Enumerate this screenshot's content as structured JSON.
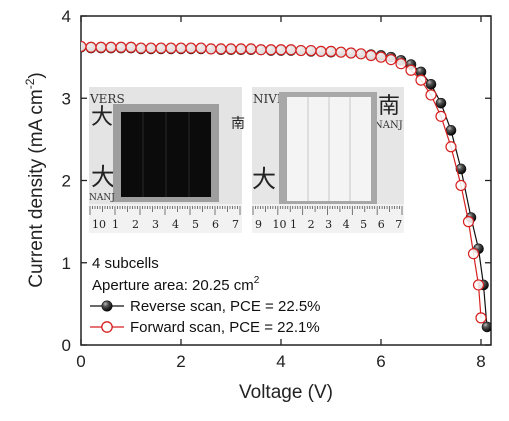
{
  "chart_data": {
    "type": "line",
    "xlabel": "Voltage (V)",
    "ylabel": "Current density (mA cm",
    "ylabel_sup": "-2",
    "ylabel_end": ")",
    "xlim": [
      0,
      8.2
    ],
    "ylim": [
      0,
      4
    ],
    "xticks": [
      0,
      2,
      4,
      6,
      8
    ],
    "yticks": [
      0,
      1,
      2,
      3,
      4
    ],
    "grid": false,
    "legend_position": "bottom-left",
    "annotations": {
      "line1": "4 subcells",
      "line2": "Aperture area: 20.25 cm",
      "line2_sup": "2"
    },
    "colors": {
      "reverse": "#111111",
      "forward": "#d62020"
    },
    "series": [
      {
        "name": "Reverse scan, PCE = 22.5%",
        "marker": "filled-sphere",
        "points": [
          [
            0,
            3.62
          ],
          [
            0.2,
            3.61
          ],
          [
            0.4,
            3.61
          ],
          [
            0.6,
            3.61
          ],
          [
            0.8,
            3.61
          ],
          [
            1.0,
            3.61
          ],
          [
            1.2,
            3.6
          ],
          [
            1.4,
            3.6
          ],
          [
            1.6,
            3.6
          ],
          [
            1.8,
            3.6
          ],
          [
            2.0,
            3.6
          ],
          [
            2.2,
            3.6
          ],
          [
            2.4,
            3.6
          ],
          [
            2.6,
            3.6
          ],
          [
            2.8,
            3.59
          ],
          [
            3.0,
            3.59
          ],
          [
            3.2,
            3.59
          ],
          [
            3.4,
            3.59
          ],
          [
            3.6,
            3.59
          ],
          [
            3.8,
            3.58
          ],
          [
            4.0,
            3.58
          ],
          [
            4.2,
            3.58
          ],
          [
            4.4,
            3.58
          ],
          [
            4.6,
            3.57
          ],
          [
            4.8,
            3.57
          ],
          [
            5.0,
            3.56
          ],
          [
            5.2,
            3.56
          ],
          [
            5.4,
            3.55
          ],
          [
            5.6,
            3.54
          ],
          [
            5.8,
            3.53
          ],
          [
            6.0,
            3.52
          ],
          [
            6.2,
            3.5
          ],
          [
            6.4,
            3.46
          ],
          [
            6.6,
            3.41
          ],
          [
            6.8,
            3.32
          ],
          [
            7.0,
            3.17
          ],
          [
            7.2,
            2.94
          ],
          [
            7.4,
            2.61
          ],
          [
            7.6,
            2.14
          ],
          [
            7.8,
            1.55
          ],
          [
            7.95,
            1.17
          ],
          [
            8.05,
            0.73
          ],
          [
            8.12,
            0.22
          ]
        ]
      },
      {
        "name": "Forward scan, PCE = 22.1%",
        "marker": "open-circle",
        "points": [
          [
            0,
            3.63
          ],
          [
            0.2,
            3.62
          ],
          [
            0.4,
            3.62
          ],
          [
            0.6,
            3.62
          ],
          [
            0.8,
            3.62
          ],
          [
            1.0,
            3.62
          ],
          [
            1.2,
            3.61
          ],
          [
            1.4,
            3.61
          ],
          [
            1.6,
            3.61
          ],
          [
            1.8,
            3.61
          ],
          [
            2.0,
            3.61
          ],
          [
            2.2,
            3.61
          ],
          [
            2.4,
            3.61
          ],
          [
            2.6,
            3.6
          ],
          [
            2.8,
            3.6
          ],
          [
            3.0,
            3.6
          ],
          [
            3.2,
            3.6
          ],
          [
            3.4,
            3.6
          ],
          [
            3.6,
            3.59
          ],
          [
            3.8,
            3.59
          ],
          [
            4.0,
            3.59
          ],
          [
            4.2,
            3.59
          ],
          [
            4.4,
            3.58
          ],
          [
            4.6,
            3.58
          ],
          [
            4.8,
            3.57
          ],
          [
            5.0,
            3.57
          ],
          [
            5.2,
            3.56
          ],
          [
            5.4,
            3.55
          ],
          [
            5.6,
            3.54
          ],
          [
            5.8,
            3.52
          ],
          [
            6.0,
            3.5
          ],
          [
            6.2,
            3.47
          ],
          [
            6.4,
            3.42
          ],
          [
            6.6,
            3.34
          ],
          [
            6.8,
            3.22
          ],
          [
            7.0,
            3.04
          ],
          [
            7.2,
            2.78
          ],
          [
            7.4,
            2.41
          ],
          [
            7.6,
            1.94
          ],
          [
            7.75,
            1.5
          ],
          [
            7.85,
            1.11
          ],
          [
            7.95,
            0.73
          ],
          [
            8.0,
            0.33
          ]
        ]
      }
    ],
    "inset_photos": [
      {
        "label_top": "VERS",
        "label_right": "NANJ",
        "ruler_digits": [
          "10",
          "1",
          "2",
          "3",
          "4",
          "5",
          "6",
          "7"
        ],
        "cjk_left": "大",
        "cjk_right": "南"
      },
      {
        "label_top": "NIVERS",
        "label_right": "NANJ",
        "ruler_digits": [
          "9",
          "10",
          "1",
          "2",
          "3",
          "4",
          "5",
          "6",
          "7"
        ],
        "cjk_left": "大",
        "cjk_right": "南"
      }
    ]
  }
}
